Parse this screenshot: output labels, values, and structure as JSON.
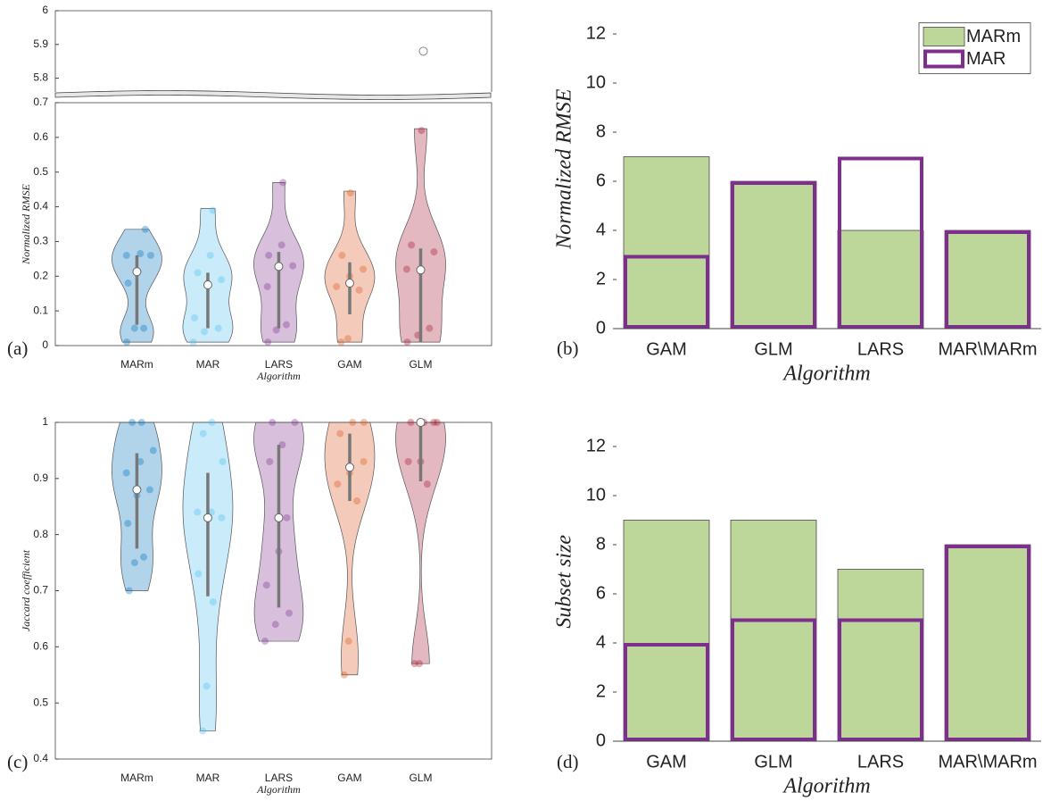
{
  "chart_data": [
    {
      "type": "violin",
      "panel_label": "(a)",
      "ylabel": "Normalized RMSE",
      "xlabel": "Algorithm",
      "ylim": [
        0,
        0.7
      ],
      "yticks": [
        0,
        0.1,
        0.2,
        0.3,
        0.4,
        0.5,
        0.6,
        0.7
      ],
      "upper_ylim": [
        5.775,
        6
      ],
      "upper_yticks": [
        5.8,
        5.9,
        6
      ],
      "violins": [
        {
          "name": "MARm",
          "color": "#0072bd",
          "points": [
            0.01,
            0.05,
            0.05,
            0.18,
            0.21,
            0.26,
            0.26,
            0.265,
            0.335
          ],
          "median": 0.213,
          "q1": 0.06,
          "q3": 0.26,
          "min": 0.01,
          "max": 0.335,
          "outliers": []
        },
        {
          "name": "MAR",
          "color": "#4dbeee",
          "points": [
            0.01,
            0.04,
            0.05,
            0.08,
            0.18,
            0.19,
            0.21,
            0.26,
            0.39
          ],
          "median": 0.175,
          "q1": 0.05,
          "q3": 0.21,
          "min": 0.01,
          "max": 0.395,
          "outliers": []
        },
        {
          "name": "LARS",
          "color": "#7e2f8e",
          "points": [
            0.01,
            0.045,
            0.06,
            0.17,
            0.23,
            0.23,
            0.26,
            0.29,
            0.47
          ],
          "median": 0.228,
          "q1": 0.05,
          "q3": 0.27,
          "min": 0.01,
          "max": 0.47,
          "outliers": []
        },
        {
          "name": "GAM",
          "color": "#d95319",
          "points": [
            0.01,
            0.02,
            0.16,
            0.17,
            0.2,
            0.22,
            0.26,
            0.44
          ],
          "median": 0.18,
          "q1": 0.09,
          "q3": 0.24,
          "min": 0.01,
          "max": 0.445,
          "outliers": []
        },
        {
          "name": "GLM",
          "color": "#a2142f",
          "points": [
            0.01,
            0.03,
            0.05,
            0.22,
            0.22,
            0.27,
            0.29,
            0.62
          ],
          "median": 0.218,
          "q1": 0.01,
          "q3": 0.28,
          "min": 0.01,
          "max": 0.625,
          "outliers": [
            5.88
          ]
        }
      ]
    },
    {
      "type": "bar",
      "panel_label": "(b)",
      "ylabel": "Normalized RMSE",
      "xlabel": "Algorithm",
      "categories": [
        "GAM",
        "GLM",
        "LARS",
        "MAR\\MARm"
      ],
      "ylim": [
        0,
        13
      ],
      "yticks": [
        0,
        2,
        4,
        6,
        8,
        10,
        12
      ],
      "legend": "top-right",
      "series": [
        {
          "name": "MARm",
          "color": "#bdd79b",
          "style": "filled",
          "values": [
            7,
            6,
            4,
            4
          ]
        },
        {
          "name": "MAR",
          "color": "#7e2f8e",
          "style": "outline",
          "values": [
            3,
            6,
            7,
            4
          ]
        }
      ]
    },
    {
      "type": "violin",
      "panel_label": "(c)",
      "ylabel": "Jaccard coefficient",
      "xlabel": "Algorithm",
      "ylim": [
        0.4,
        1
      ],
      "yticks": [
        0.4,
        0.5,
        0.6,
        0.7,
        0.8,
        0.9,
        1
      ],
      "violins": [
        {
          "name": "MARm",
          "color": "#0072bd",
          "points": [
            0.7,
            0.75,
            0.76,
            0.82,
            0.87,
            0.88,
            0.91,
            0.93,
            0.95,
            1,
            1
          ],
          "median": 0.88,
          "q1": 0.775,
          "q3": 0.945,
          "min": 0.7,
          "max": 1,
          "outliers": []
        },
        {
          "name": "MAR",
          "color": "#4dbeee",
          "points": [
            0.45,
            0.53,
            0.68,
            0.73,
            0.83,
            0.83,
            0.84,
            0.84,
            0.93,
            0.98,
            1
          ],
          "median": 0.83,
          "q1": 0.69,
          "q3": 0.91,
          "min": 0.45,
          "max": 1,
          "outliers": []
        },
        {
          "name": "LARS",
          "color": "#7e2f8e",
          "points": [
            0.61,
            0.64,
            0.66,
            0.71,
            0.77,
            0.83,
            0.93,
            0.96,
            1,
            1
          ],
          "median": 0.83,
          "q1": 0.67,
          "q3": 0.96,
          "min": 0.61,
          "max": 1,
          "outliers": []
        },
        {
          "name": "GAM",
          "color": "#d95319",
          "points": [
            0.55,
            0.61,
            0.86,
            0.89,
            0.91,
            0.93,
            0.98,
            1,
            1
          ],
          "median": 0.92,
          "q1": 0.86,
          "q3": 0.98,
          "min": 0.55,
          "max": 1,
          "outliers": []
        },
        {
          "name": "GLM",
          "color": "#a2142f",
          "points": [
            0.57,
            0.57,
            0.89,
            0.93,
            0.93,
            1,
            1,
            1,
            1
          ],
          "median": 1,
          "q1": 0.895,
          "q3": 1,
          "min": 0.57,
          "max": 1,
          "outliers": []
        }
      ]
    },
    {
      "type": "bar",
      "panel_label": "(d)",
      "ylabel": "Subset size",
      "xlabel": "Algorithm",
      "categories": [
        "GAM",
        "GLM",
        "LARS",
        "MAR\\MARm"
      ],
      "ylim": [
        0,
        13
      ],
      "yticks": [
        0,
        2,
        4,
        6,
        8,
        10,
        12
      ],
      "series": [
        {
          "name": "MARm",
          "color": "#bdd79b",
          "style": "filled",
          "values": [
            9,
            9,
            7,
            8
          ]
        },
        {
          "name": "MAR",
          "color": "#7e2f8e",
          "style": "outline",
          "values": [
            4,
            5,
            5,
            8
          ]
        }
      ]
    }
  ]
}
